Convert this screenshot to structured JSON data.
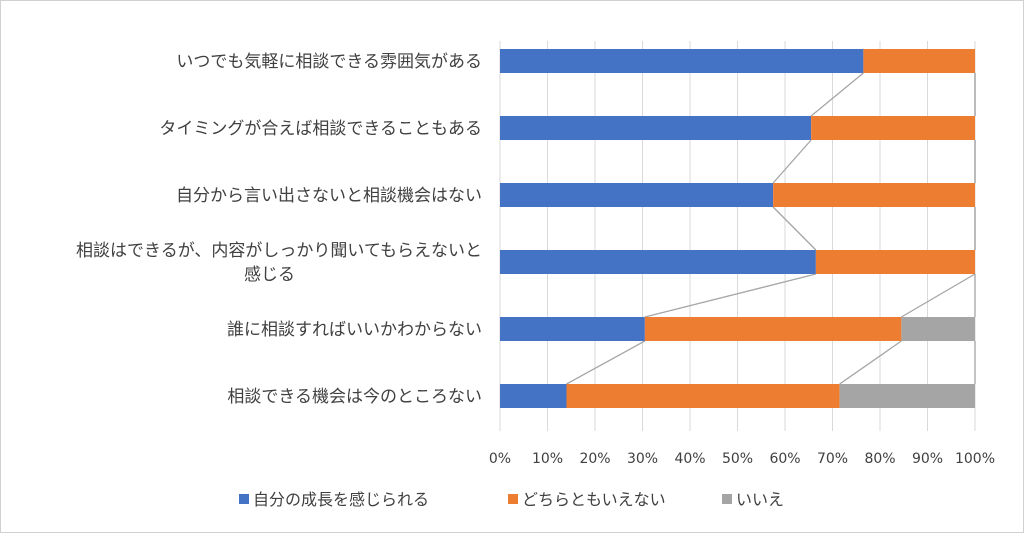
{
  "chart_data": {
    "type": "bar",
    "orientation": "horizontal",
    "stacked_percent": true,
    "categories": [
      [
        "いつでも気軽に相談できる雰囲気がある"
      ],
      [
        "タイミングが合えば相談できることもある"
      ],
      [
        "自分から言い出さないと相談機会はない"
      ],
      [
        "相談はできるが、内容がしっかり聞いてもらえないと",
        "感じる"
      ],
      [
        "誰に相談すればいいかわからない"
      ],
      [
        "相談できる機会は今のところない"
      ]
    ],
    "series": [
      {
        "name": "自分の成長を感じられる",
        "color": "#4472C4",
        "values": [
          76.5,
          65.5,
          57.5,
          66.5,
          30.5,
          14.0
        ]
      },
      {
        "name": "どちらともいえない",
        "color": "#ED7D31",
        "values": [
          23.5,
          34.5,
          42.5,
          33.5,
          54.0,
          57.5
        ]
      },
      {
        "name": "いいえ",
        "color": "#A5A5A5",
        "values": [
          0.0,
          0.0,
          0.0,
          0.0,
          15.5,
          28.5
        ]
      }
    ],
    "x_ticks": [
      "0%",
      "10%",
      "20%",
      "30%",
      "40%",
      "50%",
      "60%",
      "70%",
      "80%",
      "90%",
      "100%"
    ],
    "xlim": [
      0,
      100
    ],
    "series_lines": true,
    "grid": true,
    "legend_position": "bottom"
  }
}
